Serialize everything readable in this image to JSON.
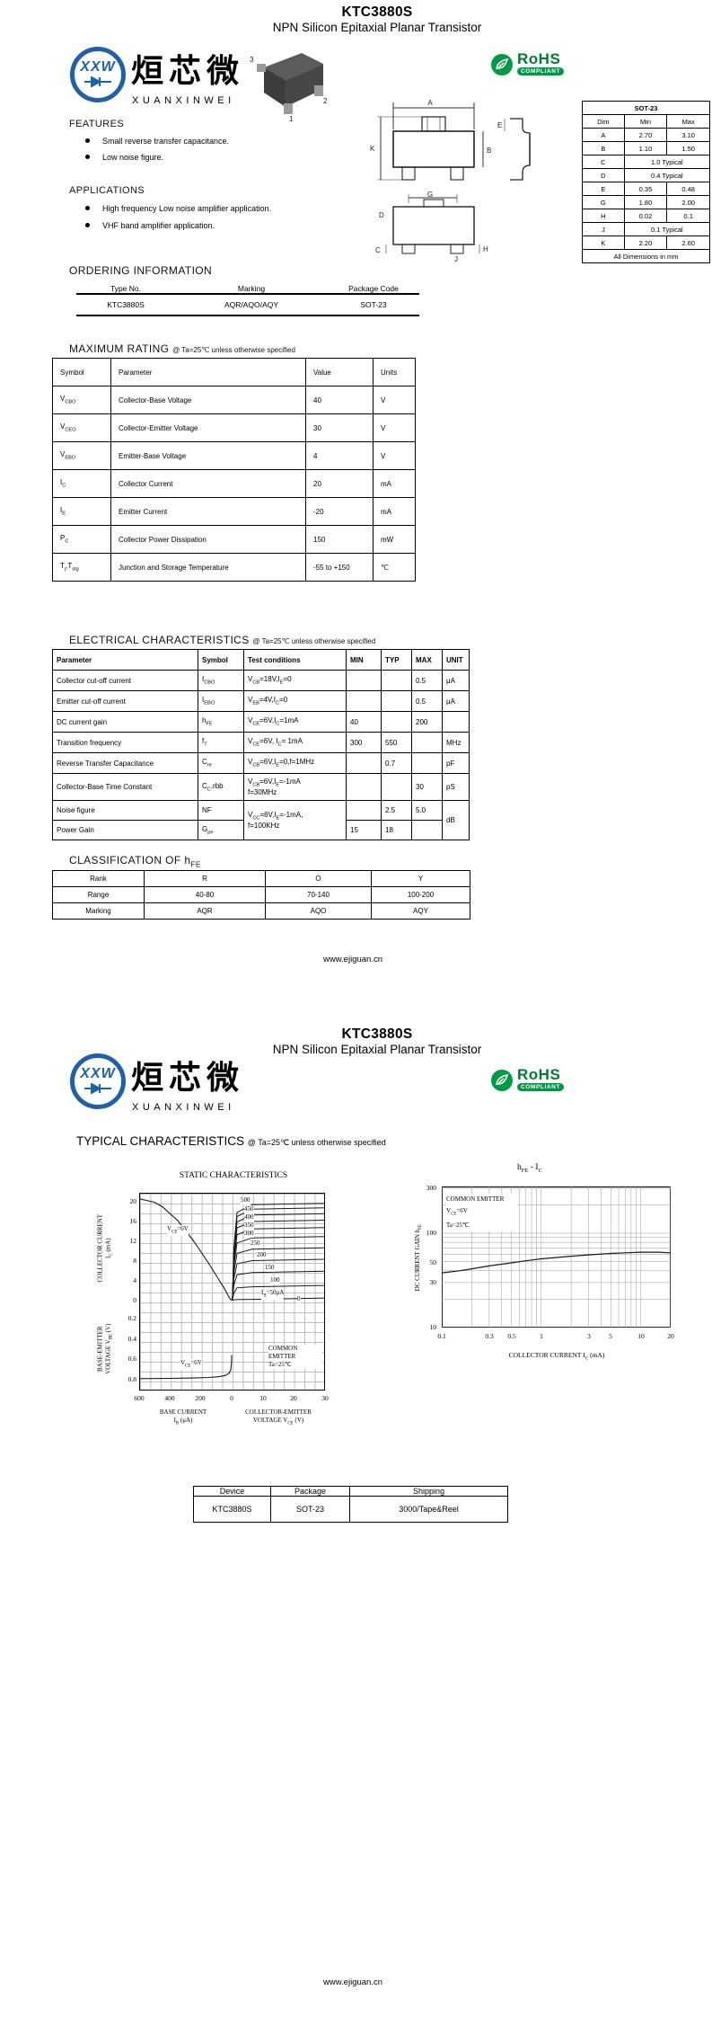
{
  "page1": {
    "title": "KTC3880S",
    "subtitle": "NPN Silicon Epitaxial Planar Transistor",
    "brand": {
      "cn": "烜芯微",
      "en": "XUANXINWEI",
      "monogram": "XXW"
    },
    "rohs": {
      "name": "RoHS",
      "compliant": "COMPLIANT"
    },
    "pins": {
      "p1": "1",
      "p2": "2",
      "p3": "3"
    },
    "dims": {
      "a": "A",
      "b": "B",
      "k": "K",
      "e": "E",
      "g": "G",
      "d": "D",
      "c": "C",
      "h": "H",
      "j": "J"
    },
    "features": {
      "heading": "FEATURES",
      "items": [
        "Small reverse transfer capacitance.",
        "Low noise figure."
      ]
    },
    "applications": {
      "heading": "APPLICATIONS",
      "items": [
        "High frequency Low noise amplifier application.",
        "VHF band amplifier application."
      ]
    },
    "ordering": {
      "heading": "ORDERING INFORMATION",
      "rows": [
        [
          "Type No.",
          "Marking",
          "Package Code"
        ],
        [
          "KTC3880S",
          "AQR/AQO/AQY",
          "SOT-23"
        ]
      ]
    },
    "package_table": {
      "rows": [
        [
          [
            "SOT-23",
            3
          ]
        ],
        [
          "Dim",
          "Min",
          "Max"
        ],
        [
          "A",
          "2.70",
          "3.10"
        ],
        [
          "B",
          "1.10",
          "1.50"
        ],
        [
          "C",
          [
            "1.0 Typical",
            2
          ]
        ],
        [
          "D",
          [
            "0.4 Typical",
            2
          ]
        ],
        [
          "E",
          "0.35",
          "0.48"
        ],
        [
          "G",
          "1.80",
          "2.00"
        ],
        [
          "H",
          "0.02",
          "0.1"
        ],
        [
          "J",
          [
            "0.1 Typical",
            2
          ]
        ],
        [
          "K",
          "2.20",
          "2.60"
        ],
        [
          [
            "All Dimensions in mm",
            3
          ]
        ]
      ]
    },
    "max_rating": {
      "heading": "MAXIMUM RATING",
      "condition": "@ Ta=25℃ unless otherwise specified",
      "rows": [
        [
          "Symbol",
          "Parameter",
          "Value",
          "Units"
        ],
        [
          "V~CBO~",
          "Collector-Base Voltage",
          "40",
          "V"
        ],
        [
          "V~CEO~",
          "Collector-Emitter Voltage",
          "30",
          "V"
        ],
        [
          "V~EBO~",
          "Emitter-Base Voltage",
          "4",
          "V"
        ],
        [
          "I~C~",
          "Collector Current",
          "20",
          "mA"
        ],
        [
          "I~E~",
          "Emitter Current",
          "-20",
          "mA"
        ],
        [
          "P~C~",
          "Collector Power Dissipation",
          "150",
          "mW"
        ],
        [
          "T~j~,T~stg~",
          "Junction and Storage Temperature",
          "-55 to +150",
          "℃"
        ]
      ]
    },
    "electrical": {
      "heading": "ELECTRICAL CHARACTERISTICS",
      "condition": "@ Ta=25℃ unless otherwise specified",
      "rows": [
        [
          "Parameter",
          "Symbol",
          "Test conditions",
          "MIN",
          "TYP",
          "MAX",
          "UNIT"
        ],
        [
          "Collector cut-off current",
          "I~CBO~",
          "V~CB~=18V,I~E~=0",
          "",
          "",
          "0.5",
          "μA"
        ],
        [
          "Emitter cut-off current",
          "I~EBO~",
          "V~EB~=4V,I~C~=0",
          "",
          "",
          "0.5",
          "μA"
        ],
        [
          "DC current gain",
          "h~FE~",
          "V~CE~=6V,I~C~=1mA",
          "40",
          "",
          "200",
          ""
        ],
        [
          "Transition frequency",
          "f~T~",
          "V~CE~=6V, I~C~= 1mA",
          "300",
          "550",
          "",
          "MHz"
        ],
        [
          "Reverse Transfer Capacitance",
          "C~re~",
          "V~CB~=6V,I~E~=0,f=1MHz",
          "",
          "0.7",
          "",
          "pF"
        ],
        [
          "Collector-Base Time Constant",
          "C~C~.rbb",
          "V~CB~=6V,I~E~=-1mA\nf=30MHz",
          "",
          "",
          "30",
          "pS"
        ],
        [
          "Noise figure",
          "NF",
          "V~CC~=6V,I~E~=-1mA,\nf=100KHz",
          "",
          "2.5",
          "5.0",
          "dB"
        ],
        [
          "Power Gain",
          "G~pe~",
          "",
          "15",
          "18",
          "",
          ""
        ]
      ]
    },
    "classification": {
      "heading": "CLASSIFICATION  OF  h~FE~",
      "rows": [
        [
          "Rank",
          "R",
          "O",
          "Y"
        ],
        [
          "Range",
          "40-80",
          "70-140",
          "100-200"
        ],
        [
          "Marking",
          "AQR",
          "AQO",
          "AQY"
        ]
      ]
    },
    "footer": "www.ejiguan.cn"
  },
  "page2": {
    "title": "KTC3880S",
    "subtitle": "NPN Silicon Epitaxial Planar Transistor",
    "typical": {
      "heading": "TYPICAL CHARACTERISTICS",
      "condition": "@ Ta=25℃ unless otherwise specified"
    },
    "shipping": {
      "rows": [
        [
          "Device",
          "Package",
          "Shipping"
        ],
        [
          "KTC3880S",
          "SOT-23",
          "3000/Tape&Reel"
        ]
      ]
    },
    "footer": "www.ejiguan.cn"
  },
  "chart_data": [
    {
      "type": "line",
      "title": "STATIC CHARACTERISTICS",
      "x_axis": {
        "left_ticks": [
          "600",
          "400",
          "200",
          "0"
        ],
        "right_ticks": [
          "10",
          "20",
          "30"
        ],
        "left_label": "BASE CURRENT\nI~B~ (μA)",
        "right_label": "COLLECTOR-EMITTER\nVOLTAGE V~CE~ (V)"
      },
      "y_axis": {
        "top_ticks": [
          "20",
          "16",
          "12",
          "8",
          "4",
          "0"
        ],
        "bottom_ticks": [
          "0.2",
          "0.4",
          "0.6",
          "0.8"
        ],
        "top_label": "COLLECTOR CURRENT\nI~C~ (mA)",
        "bottom_label": "BASE-EMITTER\nVOLTAGE V~BE~ (V)"
      },
      "annotations": {
        "vce_top": "V~CE~=6V",
        "vce_bottom": "V~CE~=6V",
        "corner": "COMMON\nEMITTER\nTa=25℃"
      },
      "curve_labels": [
        "500",
        "450",
        "400",
        "350",
        "300",
        "250",
        "200",
        "150",
        "100",
        "I~B~=50μA",
        "0"
      ],
      "series": [
        {
          "name": "IC vs IB at VCE=6V",
          "x_unit": "μA",
          "y_unit": "mA",
          "points": [
            [
              600,
              20.6
            ],
            [
              500,
              19.9
            ],
            [
              450,
              19.0
            ],
            [
              400,
              17.6
            ],
            [
              350,
              16.2
            ],
            [
              300,
              14.2
            ],
            [
              250,
              12.2
            ],
            [
              200,
              9.9
            ],
            [
              150,
              7.6
            ],
            [
              100,
              5.1
            ],
            [
              50,
              2.6
            ],
            [
              15,
              0.6
            ],
            [
              0,
              0
            ]
          ]
        },
        {
          "name": "VBE vs IB at VCE=6V",
          "x_unit": "μA",
          "y_unit": "V",
          "points": [
            [
              600,
              0.79
            ],
            [
              400,
              0.787
            ],
            [
              250,
              0.783
            ],
            [
              150,
              0.778
            ],
            [
              80,
              0.77
            ],
            [
              40,
              0.758
            ],
            [
              15,
              0.735
            ],
            [
              5,
              0.7
            ],
            [
              1,
              0.64
            ],
            [
              0,
              0.56
            ]
          ]
        },
        {
          "name": "IC vs VCE family (IB in μA -> saturated IC in mA)",
          "levels": [
            [
              500,
              19.4
            ],
            [
              450,
              18.5
            ],
            [
              400,
              17.3
            ],
            [
              350,
              16.0
            ],
            [
              300,
              14.5
            ],
            [
              250,
              12.7
            ],
            [
              200,
              10.4
            ],
            [
              150,
              8.1
            ],
            [
              100,
              5.7
            ],
            [
              50,
              2.8
            ],
            [
              0,
              0.25
            ]
          ]
        }
      ]
    },
    {
      "type": "line",
      "title": "h~FE~  -  I~C~",
      "xlabel": "COLLECTOR CURRENT I~C~  (mA)",
      "ylabel": "DC CURRENT GAIN h~FE~",
      "x_scale": "log",
      "y_scale": "log",
      "x_ticks": [
        "0.1",
        "0.3",
        "0.5",
        "1",
        "3",
        "5",
        "10",
        "20"
      ],
      "y_ticks": [
        "300",
        "100",
        "50",
        "30",
        "10"
      ],
      "xlim": [
        0.1,
        20
      ],
      "ylim": [
        10,
        300
      ],
      "annotations": "COMMON EMITTER\nV~CE~=6V\nTa=25℃",
      "series": [
        {
          "name": "hFE vs IC",
          "x": [
            0.1,
            0.15,
            0.2,
            0.3,
            0.5,
            0.7,
            1,
            2,
            3,
            5,
            7,
            10,
            15,
            20
          ],
          "y": [
            38,
            40,
            42,
            45,
            48.5,
            51,
            53.5,
            57,
            59,
            61,
            62,
            63,
            63,
            62
          ]
        }
      ]
    }
  ]
}
